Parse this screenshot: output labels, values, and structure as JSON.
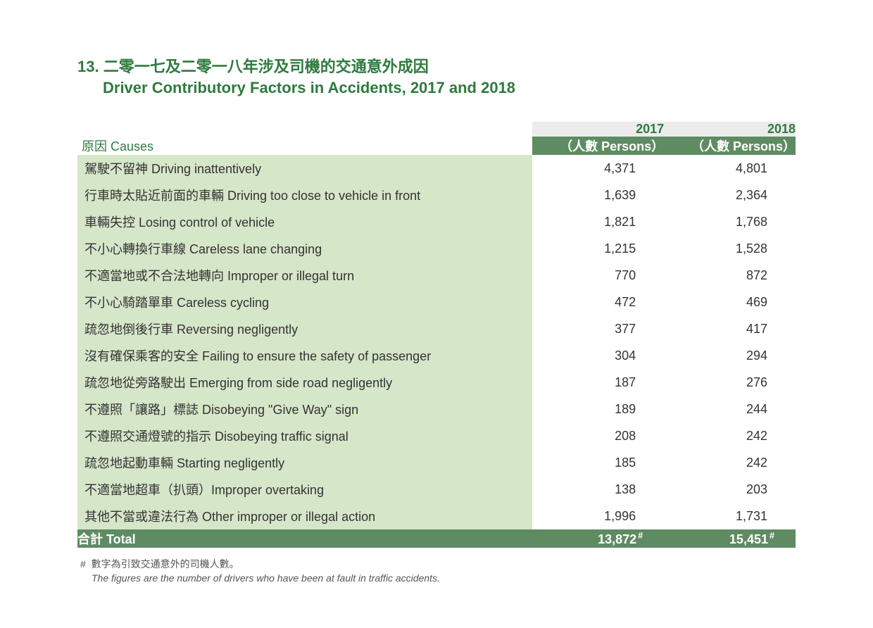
{
  "title": {
    "number": "13.",
    "zh": "二零一七及二零一八年涉及司機的交通意外成因",
    "en": "Driver Contributory Factors in Accidents, 2017 and 2018"
  },
  "table": {
    "type": "table",
    "causes_label": "原因 Causes",
    "columns": [
      {
        "year": "2017",
        "unit": "（人數 Persons）"
      },
      {
        "year": "2018",
        "unit": "（人數 Persons）"
      }
    ],
    "rows": [
      {
        "cause": "駕駛不留神 Driving inattentively",
        "v2017": "4,371",
        "v2018": "4,801"
      },
      {
        "cause": "行車時太貼近前面的車輛 Driving too close to vehicle in front",
        "v2017": "1,639",
        "v2018": "2,364"
      },
      {
        "cause": "車輛失控 Losing control of vehicle",
        "v2017": "1,821",
        "v2018": "1,768"
      },
      {
        "cause": "不小心轉換行車線 Careless lane changing",
        "v2017": "1,215",
        "v2018": "1,528"
      },
      {
        "cause": "不適當地或不合法地轉向 Improper or illegal turn",
        "v2017": "770",
        "v2018": "872"
      },
      {
        "cause": "不小心騎踏單車 Careless cycling",
        "v2017": "472",
        "v2018": "469"
      },
      {
        "cause": "疏忽地倒後行車 Reversing negligently",
        "v2017": "377",
        "v2018": "417"
      },
      {
        "cause": "沒有確保乘客的安全 Failing to ensure the safety of passenger",
        "v2017": "304",
        "v2018": "294"
      },
      {
        "cause": "疏忽地從旁路駛出 Emerging from side road negligently",
        "v2017": "187",
        "v2018": "276"
      },
      {
        "cause": "不遵照「讓路」標誌 Disobeying \"Give Way\" sign",
        "v2017": "189",
        "v2018": "244"
      },
      {
        "cause": "不遵照交通燈號的指示 Disobeying traffic signal",
        "v2017": "208",
        "v2018": "242"
      },
      {
        "cause": "疏忽地起動車輛 Starting negligently",
        "v2017": "185",
        "v2018": "242"
      },
      {
        "cause": "不適當地超車（扒頭）Improper overtaking",
        "v2017": "138",
        "v2018": "203"
      },
      {
        "cause": "其他不當或違法行為 Other improper or illegal action",
        "v2017": "1,996",
        "v2018": "1,731"
      }
    ],
    "total": {
      "label": "合計 Total",
      "v2017": "13,872",
      "v2018": "15,451",
      "marker": "#"
    },
    "colors": {
      "brand_green": "#2f7a3f",
      "header_dark_bg": "#5f8b63",
      "header_light_bg": "#ececec",
      "row_cause_bg": "#d6e6c9",
      "text": "#333333",
      "white": "#ffffff"
    },
    "font_sizes": {
      "title": 22,
      "body": 18,
      "footnote": 14
    }
  },
  "footnote": {
    "marker": "#",
    "zh": "數字為引致交通意外的司機人數。",
    "en": "The figures are the number of drivers who have been at fault in traffic accidents."
  }
}
